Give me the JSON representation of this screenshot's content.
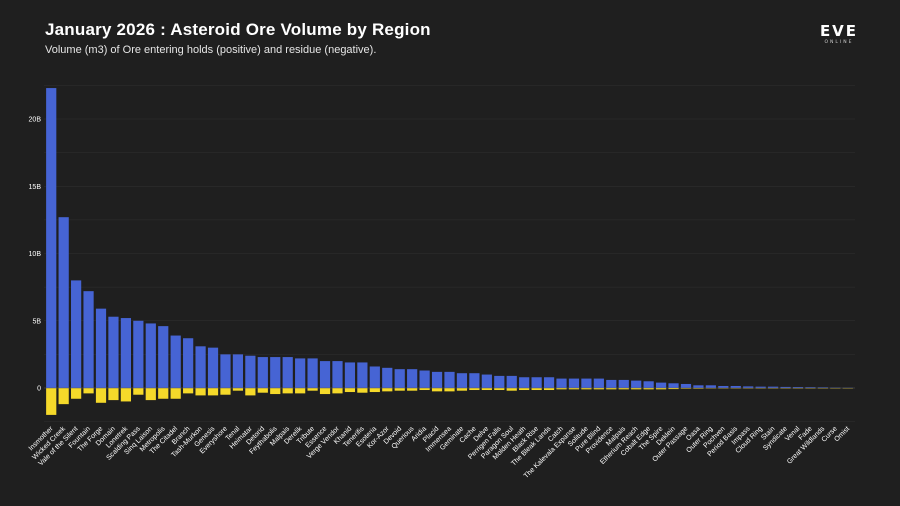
{
  "colors": {
    "background": "#1f1f1f",
    "positive": "#4664d4",
    "negative": "#f5d92a",
    "grid": "#303030",
    "text": "#ffffff"
  },
  "logo": {
    "main": "EVE",
    "sub": "ONLINE",
    "icon": "eve-online-logo"
  },
  "chart_data": {
    "type": "bar",
    "title": "January 2026 : Asteroid Ore Volume by Region",
    "subtitle": "Volume (m3) of Ore entering holds (positive) and residue (negative).",
    "xlabel": "",
    "ylabel": "",
    "ylim": [
      -2.5,
      23.5
    ],
    "yticks": [
      0,
      5,
      10,
      15,
      20
    ],
    "ytick_labels": [
      "0",
      "5B",
      "10B",
      "15B",
      "20B"
    ],
    "grid": true,
    "units": "billion m3",
    "categories": [
      "Insmother",
      "Wicked Creek",
      "Vale of the Silent",
      "Fountain",
      "The Forge",
      "Domain",
      "Lonetrek",
      "Scalding Pass",
      "Sinq Laison",
      "Metropolis",
      "The Citadel",
      "Branch",
      "Tash-Murkon",
      "Genesis",
      "Everyshore",
      "Tenal",
      "Heimatar",
      "Detorid",
      "Feythabolis",
      "Malpais",
      "Derelik",
      "Tribute",
      "Essence",
      "Verge Vendor",
      "Khanid",
      "Tenerifis",
      "Esoteria",
      "Kor-Azor",
      "Devoid",
      "Querious",
      "Aridia",
      "Placid",
      "Immensea",
      "Geminate",
      "Cache",
      "Delve",
      "Perrigen Falls",
      "Paragon Soul",
      "Molden Heath",
      "Black Rise",
      "The Bleak Lands",
      "Catch",
      "The Kalevala Expanse",
      "Solitude",
      "Pure Blind",
      "Providence",
      "Malpais",
      "Etherium Reach",
      "Cobalt Edge",
      "The Spire",
      "Deklein",
      "Outer Passage",
      "Oasa",
      "Outer Ring",
      "Pochven",
      "Period Basis",
      "Impass",
      "Cloud Ring",
      "Stain",
      "Syndicate",
      "Venal",
      "Fade",
      "Great Wildlands",
      "Curse",
      "Omist"
    ],
    "series": [
      {
        "name": "Ore entering holds (positive)",
        "values": [
          22.3,
          12.7,
          8.0,
          7.2,
          5.9,
          5.3,
          5.2,
          5.0,
          4.8,
          4.6,
          3.9,
          3.7,
          3.1,
          3.0,
          2.5,
          2.5,
          2.4,
          2.3,
          2.3,
          2.3,
          2.2,
          2.2,
          2.0,
          2.0,
          1.9,
          1.9,
          1.6,
          1.5,
          1.4,
          1.4,
          1.3,
          1.2,
          1.2,
          1.1,
          1.1,
          1.0,
          0.9,
          0.9,
          0.8,
          0.8,
          0.8,
          0.7,
          0.7,
          0.7,
          0.7,
          0.6,
          0.6,
          0.55,
          0.5,
          0.4,
          0.35,
          0.3,
          0.2,
          0.2,
          0.15,
          0.15,
          0.12,
          0.1,
          0.1,
          0.08,
          0.07,
          0.06,
          0.05,
          0.03,
          0.02
        ]
      },
      {
        "name": "Residue (negative)",
        "values": [
          -2.0,
          -1.2,
          -0.8,
          -0.4,
          -1.1,
          -0.9,
          -1.0,
          -0.5,
          -0.9,
          -0.8,
          -0.8,
          -0.4,
          -0.55,
          -0.55,
          -0.5,
          -0.2,
          -0.55,
          -0.35,
          -0.45,
          -0.4,
          -0.4,
          -0.2,
          -0.45,
          -0.4,
          -0.3,
          -0.35,
          -0.3,
          -0.25,
          -0.2,
          -0.2,
          -0.15,
          -0.25,
          -0.25,
          -0.2,
          -0.15,
          -0.15,
          -0.15,
          -0.2,
          -0.15,
          -0.15,
          -0.15,
          -0.1,
          -0.1,
          -0.1,
          -0.1,
          -0.1,
          -0.1,
          -0.1,
          -0.1,
          -0.1,
          -0.08,
          -0.05,
          -0.05,
          -0.03,
          -0.03,
          -0.03,
          -0.02,
          -0.02,
          -0.02,
          -0.01,
          -0.01,
          -0.01,
          -0.01,
          -0.005,
          -0.005
        ]
      }
    ]
  }
}
